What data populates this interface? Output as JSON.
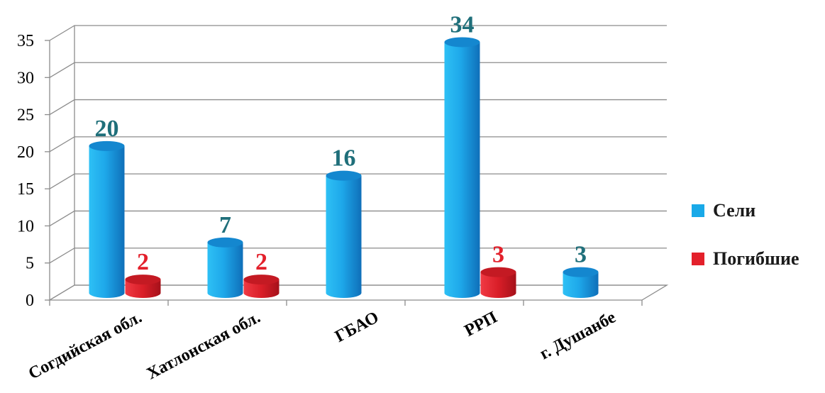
{
  "chart_data": {
    "type": "bar",
    "categories": [
      "Согдийская обл.",
      "Хатлонская обл.",
      "ГБАО",
      "РРП",
      "г. Душанбе"
    ],
    "series": [
      {
        "name": "Сели",
        "values": [
          20,
          7,
          16,
          34,
          3
        ],
        "color": "#19A9E8",
        "label_color": "#1F6F7A"
      },
      {
        "name": "Погибшие",
        "values": [
          2,
          2,
          null,
          3,
          null
        ],
        "color": "#E3202B",
        "label_color": "#E3202B"
      }
    ],
    "y_ticks": [
      "0",
      "5",
      "10",
      "15",
      "20",
      "25",
      "30",
      "35"
    ],
    "ylim": [
      0,
      35
    ],
    "grid": true,
    "legend": "right"
  }
}
